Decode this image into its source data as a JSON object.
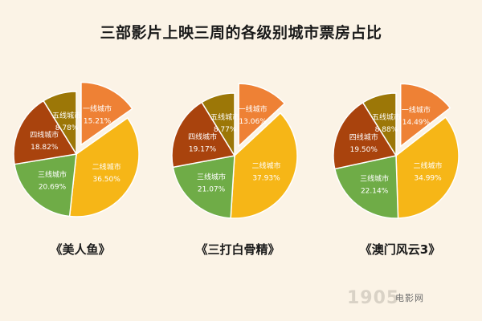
{
  "title": "三部影片上映三周的各级别城市票房占比",
  "chart_data": [
    {
      "type": "pie",
      "caption": "《美人鱼》",
      "slices": [
        {
          "label": "一线城市",
          "value": 15.21,
          "display": "15.21%",
          "color": "#EE8135",
          "exploded": true
        },
        {
          "label": "二线城市",
          "value": 36.5,
          "display": "36.50%",
          "color": "#F6B617"
        },
        {
          "label": "三线城市",
          "value": 20.69,
          "display": "20.69%",
          "color": "#6FAC47"
        },
        {
          "label": "四线城市",
          "value": 18.82,
          "display": "18.82%",
          "color": "#A9430D"
        },
        {
          "label": "五线城市",
          "value": 8.78,
          "display": "8.78%",
          "color": "#9C7707"
        }
      ]
    },
    {
      "type": "pie",
      "caption": "《三打白骨精》",
      "slices": [
        {
          "label": "一线城市",
          "value": 13.06,
          "display": "13.06%",
          "color": "#EE8135",
          "exploded": true
        },
        {
          "label": "二线城市",
          "value": 37.93,
          "display": "37.93%",
          "color": "#F6B617"
        },
        {
          "label": "三线城市",
          "value": 21.07,
          "display": "21.07%",
          "color": "#6FAC47"
        },
        {
          "label": "四线城市",
          "value": 19.17,
          "display": "19.17%",
          "color": "#A9430D"
        },
        {
          "label": "五线城市",
          "value": 8.77,
          "display": "8.77%",
          "color": "#9C7707"
        }
      ]
    },
    {
      "type": "pie",
      "caption": "《澳门风云3》",
      "slices": [
        {
          "label": "一线城市",
          "value": 14.49,
          "display": "14.49%",
          "color": "#EE8135",
          "exploded": true
        },
        {
          "label": "二线城市",
          "value": 34.99,
          "display": "34.99%",
          "color": "#F6B617"
        },
        {
          "label": "三线城市",
          "value": 22.14,
          "display": "22.14%",
          "color": "#6FAC47"
        },
        {
          "label": "四线城市",
          "value": 19.5,
          "display": "19.50%",
          "color": "#A9430D"
        },
        {
          "label": "五线城市",
          "value": 8.88,
          "display": "8.88%",
          "color": "#9C7707"
        }
      ]
    }
  ],
  "watermark": {
    "text": "1905",
    "sub": "电影网"
  }
}
